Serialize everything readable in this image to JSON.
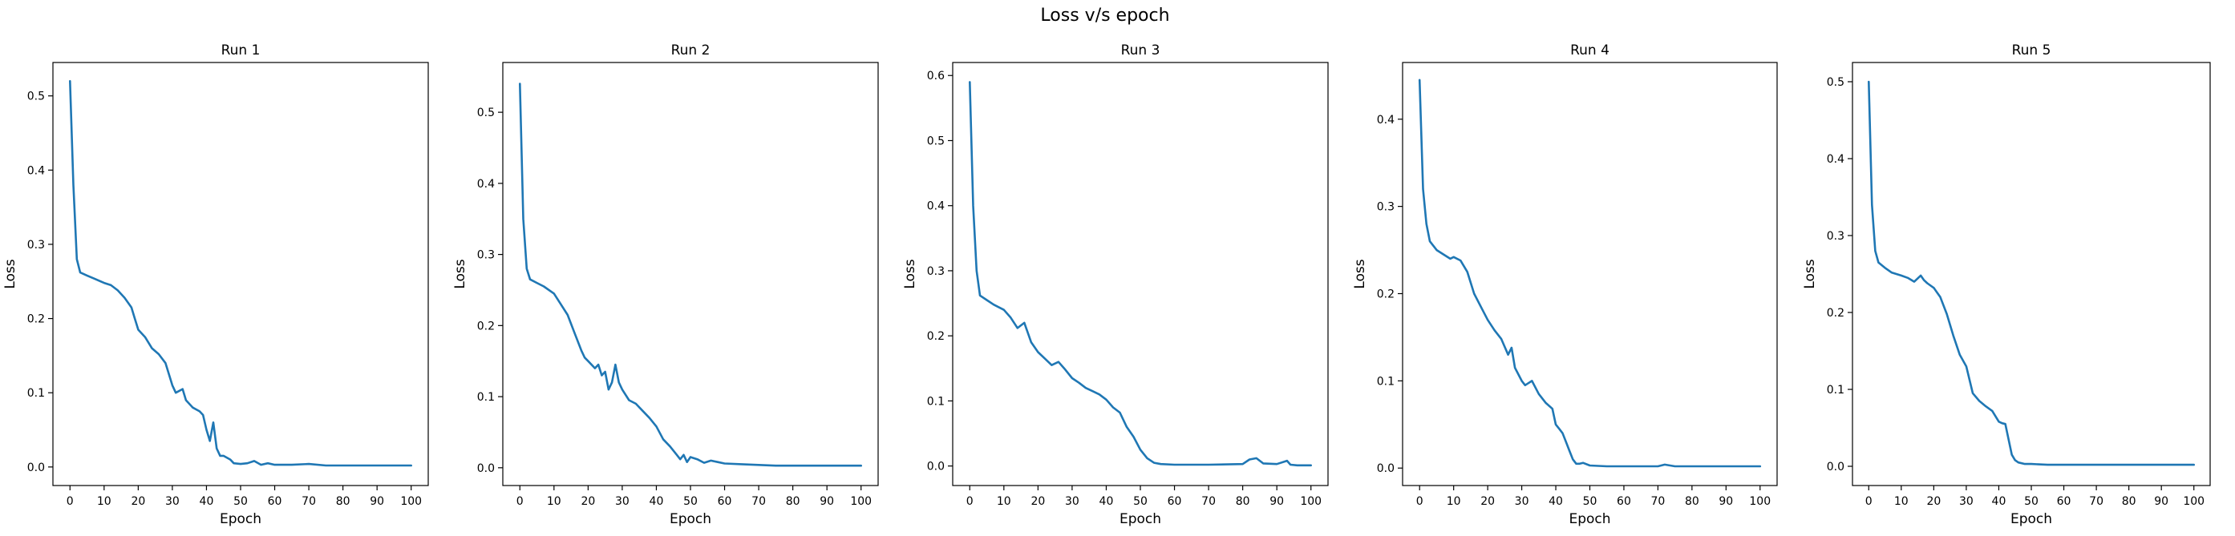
{
  "figure": {
    "title": "Loss v/s epoch"
  },
  "colors": {
    "line": "#1f77b4",
    "axes": "#000000"
  },
  "chart_data": [
    {
      "type": "line",
      "title": "Run 1",
      "xlabel": "Epoch",
      "ylabel": "Loss",
      "xlim": [
        -5,
        105
      ],
      "ylim": [
        -0.025,
        0.545
      ],
      "xticks": [
        0,
        10,
        20,
        30,
        40,
        50,
        60,
        70,
        80,
        90,
        100
      ],
      "xtick_labels": [
        "0",
        "10",
        "20",
        "30",
        "40",
        "50",
        "60",
        "70",
        "80",
        "90",
        "100"
      ],
      "yticks": [
        0.0,
        0.1,
        0.2,
        0.3,
        0.4,
        0.5
      ],
      "ytick_labels": [
        "0.0",
        "0.1",
        "0.2",
        "0.3",
        "0.4",
        "0.5"
      ],
      "grid": false,
      "series": [
        {
          "x": [
            0,
            1,
            2,
            3,
            5,
            7,
            10,
            12,
            14,
            16,
            18,
            19,
            20,
            22,
            24,
            26,
            28,
            30,
            31,
            33,
            34,
            36,
            38,
            39,
            40,
            41,
            42,
            43,
            44,
            45,
            47,
            48,
            50,
            52,
            54,
            56,
            58,
            60,
            65,
            70,
            75,
            80,
            90,
            100
          ],
          "y": [
            0.52,
            0.38,
            0.28,
            0.262,
            0.258,
            0.254,
            0.248,
            0.245,
            0.238,
            0.228,
            0.215,
            0.2,
            0.185,
            0.175,
            0.16,
            0.152,
            0.14,
            0.11,
            0.1,
            0.105,
            0.09,
            0.08,
            0.075,
            0.07,
            0.05,
            0.035,
            0.06,
            0.025,
            0.015,
            0.015,
            0.01,
            0.005,
            0.004,
            0.005,
            0.008,
            0.003,
            0.005,
            0.003,
            0.003,
            0.004,
            0.002,
            0.002,
            0.002,
            0.002
          ]
        }
      ]
    },
    {
      "type": "line",
      "title": "Run 2",
      "xlabel": "Epoch",
      "ylabel": "Loss",
      "xlim": [
        -5,
        105
      ],
      "ylim": [
        -0.025,
        0.57
      ],
      "xticks": [
        0,
        10,
        20,
        30,
        40,
        50,
        60,
        70,
        80,
        90,
        100
      ],
      "xtick_labels": [
        "0",
        "10",
        "20",
        "30",
        "40",
        "50",
        "60",
        "70",
        "80",
        "90",
        "100"
      ],
      "yticks": [
        0.0,
        0.1,
        0.2,
        0.3,
        0.4,
        0.5
      ],
      "ytick_labels": [
        "0.0",
        "0.1",
        "0.2",
        "0.3",
        "0.4",
        "0.5"
      ],
      "grid": false,
      "series": [
        {
          "x": [
            0,
            1,
            2,
            3,
            5,
            7,
            10,
            12,
            14,
            16,
            18,
            19,
            20,
            22,
            23,
            24,
            25,
            26,
            27,
            28,
            29,
            30,
            32,
            34,
            36,
            38,
            40,
            42,
            44,
            46,
            47,
            48,
            49,
            50,
            52,
            54,
            56,
            58,
            60,
            65,
            70,
            75,
            80,
            90,
            100
          ],
          "y": [
            0.54,
            0.35,
            0.28,
            0.265,
            0.26,
            0.255,
            0.245,
            0.23,
            0.215,
            0.19,
            0.165,
            0.155,
            0.15,
            0.14,
            0.145,
            0.13,
            0.135,
            0.11,
            0.12,
            0.145,
            0.12,
            0.11,
            0.095,
            0.09,
            0.08,
            0.07,
            0.058,
            0.04,
            0.03,
            0.018,
            0.012,
            0.018,
            0.008,
            0.015,
            0.012,
            0.007,
            0.01,
            0.008,
            0.006,
            0.005,
            0.004,
            0.003,
            0.003,
            0.003,
            0.003
          ]
        }
      ]
    },
    {
      "type": "line",
      "title": "Run 3",
      "xlabel": "Epoch",
      "ylabel": "Loss",
      "xlim": [
        -5,
        105
      ],
      "ylim": [
        -0.03,
        0.62
      ],
      "xticks": [
        0,
        10,
        20,
        30,
        40,
        50,
        60,
        70,
        80,
        90,
        100
      ],
      "xtick_labels": [
        "0",
        "10",
        "20",
        "30",
        "40",
        "50",
        "60",
        "70",
        "80",
        "90",
        "100"
      ],
      "yticks": [
        0.0,
        0.1,
        0.2,
        0.3,
        0.4,
        0.5,
        0.6
      ],
      "ytick_labels": [
        "0.0",
        "0.1",
        "0.2",
        "0.3",
        "0.4",
        "0.5",
        "0.6"
      ],
      "grid": false,
      "series": [
        {
          "x": [
            0,
            1,
            2,
            3,
            5,
            7,
            10,
            12,
            14,
            16,
            18,
            20,
            22,
            24,
            26,
            28,
            30,
            32,
            34,
            36,
            38,
            40,
            42,
            44,
            46,
            48,
            50,
            52,
            54,
            56,
            60,
            70,
            80,
            82,
            84,
            86,
            90,
            93,
            94,
            96,
            100
          ],
          "y": [
            0.59,
            0.4,
            0.3,
            0.262,
            0.255,
            0.248,
            0.24,
            0.228,
            0.212,
            0.22,
            0.19,
            0.175,
            0.165,
            0.155,
            0.16,
            0.148,
            0.135,
            0.128,
            0.12,
            0.115,
            0.11,
            0.102,
            0.09,
            0.082,
            0.06,
            0.045,
            0.025,
            0.012,
            0.005,
            0.003,
            0.002,
            0.002,
            0.003,
            0.01,
            0.012,
            0.004,
            0.003,
            0.008,
            0.002,
            0.001,
            0.001
          ]
        }
      ]
    },
    {
      "type": "line",
      "title": "Run 4",
      "xlabel": "Epoch",
      "ylabel": "Loss",
      "xlim": [
        -5,
        105
      ],
      "ylim": [
        -0.02,
        0.465
      ],
      "xticks": [
        0,
        10,
        20,
        30,
        40,
        50,
        60,
        70,
        80,
        90,
        100
      ],
      "xtick_labels": [
        "0",
        "10",
        "20",
        "30",
        "40",
        "50",
        "60",
        "70",
        "80",
        "90",
        "100"
      ],
      "yticks": [
        0.0,
        0.1,
        0.2,
        0.3,
        0.4
      ],
      "ytick_labels": [
        "0.0",
        "0.1",
        "0.2",
        "0.3",
        "0.4"
      ],
      "grid": false,
      "series": [
        {
          "x": [
            0,
            1,
            2,
            3,
            5,
            7,
            9,
            10,
            12,
            14,
            16,
            18,
            20,
            22,
            24,
            26,
            27,
            28,
            30,
            31,
            33,
            35,
            37,
            39,
            40,
            41,
            42,
            43,
            44,
            45,
            46,
            47,
            48,
            50,
            55,
            60,
            70,
            72,
            75,
            80,
            90,
            100
          ],
          "y": [
            0.445,
            0.32,
            0.28,
            0.26,
            0.25,
            0.245,
            0.24,
            0.242,
            0.238,
            0.225,
            0.2,
            0.185,
            0.17,
            0.158,
            0.148,
            0.13,
            0.138,
            0.115,
            0.1,
            0.095,
            0.1,
            0.085,
            0.075,
            0.068,
            0.05,
            0.045,
            0.04,
            0.03,
            0.02,
            0.01,
            0.005,
            0.005,
            0.006,
            0.003,
            0.002,
            0.002,
            0.002,
            0.004,
            0.002,
            0.002,
            0.002,
            0.002
          ]
        }
      ]
    },
    {
      "type": "line",
      "title": "Run 5",
      "xlabel": "Epoch",
      "ylabel": "Loss",
      "xlim": [
        -5,
        105
      ],
      "ylim": [
        -0.025,
        0.525
      ],
      "xticks": [
        0,
        10,
        20,
        30,
        40,
        50,
        60,
        70,
        80,
        90,
        100
      ],
      "xtick_labels": [
        "0",
        "10",
        "20",
        "30",
        "40",
        "50",
        "60",
        "70",
        "80",
        "90",
        "100"
      ],
      "yticks": [
        0.0,
        0.1,
        0.2,
        0.3,
        0.4,
        0.5
      ],
      "ytick_labels": [
        "0.0",
        "0.1",
        "0.2",
        "0.3",
        "0.4",
        "0.5"
      ],
      "grid": false,
      "series": [
        {
          "x": [
            0,
            1,
            2,
            3,
            5,
            7,
            10,
            12,
            14,
            16,
            17,
            18,
            20,
            22,
            24,
            26,
            28,
            30,
            32,
            34,
            36,
            38,
            40,
            41,
            42,
            44,
            45,
            46,
            48,
            50,
            55,
            60,
            70,
            80,
            90,
            100
          ],
          "y": [
            0.5,
            0.34,
            0.28,
            0.265,
            0.258,
            0.252,
            0.248,
            0.245,
            0.24,
            0.248,
            0.242,
            0.238,
            0.232,
            0.22,
            0.198,
            0.17,
            0.145,
            0.13,
            0.095,
            0.085,
            0.078,
            0.072,
            0.058,
            0.056,
            0.055,
            0.015,
            0.008,
            0.005,
            0.003,
            0.003,
            0.002,
            0.002,
            0.002,
            0.002,
            0.002,
            0.002
          ]
        }
      ]
    }
  ]
}
